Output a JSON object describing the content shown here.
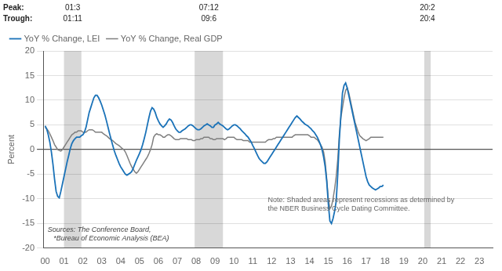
{
  "chart_data": {
    "type": "line",
    "ylabel": "Percent",
    "x": [
      2000,
      2000.0833,
      2000.1667,
      2000.25,
      2000.3333,
      2000.4167,
      2000.5,
      2000.5833,
      2000.6667,
      2000.75,
      2000.8333,
      2000.9167,
      2001,
      2001.0833,
      2001.1667,
      2001.25,
      2001.3333,
      2001.4167,
      2001.5,
      2001.5833,
      2001.6667,
      2001.75,
      2001.8333,
      2001.9167,
      2002,
      2002.0833,
      2002.1667,
      2002.25,
      2002.3333,
      2002.4167,
      2002.5,
      2002.5833,
      2002.6667,
      2002.75,
      2002.8333,
      2002.9167,
      2003,
      2003.0833,
      2003.1667,
      2003.25,
      2003.3333,
      2003.4167,
      2003.5,
      2003.5833,
      2003.6667,
      2003.75,
      2003.8333,
      2003.9167,
      2004,
      2004.0833,
      2004.1667,
      2004.25,
      2004.3333,
      2004.4167,
      2004.5,
      2004.5833,
      2004.6667,
      2004.75,
      2004.8333,
      2004.9167,
      2005,
      2005.0833,
      2005.1667,
      2005.25,
      2005.3333,
      2005.4167,
      2005.5,
      2005.5833,
      2005.6667,
      2005.75,
      2005.8333,
      2005.9167,
      2006,
      2006.0833,
      2006.1667,
      2006.25,
      2006.3333,
      2006.4167,
      2006.5,
      2006.5833,
      2006.6667,
      2006.75,
      2006.8333,
      2006.9167,
      2007,
      2007.0833,
      2007.1667,
      2007.25,
      2007.3333,
      2007.4167,
      2007.5,
      2007.5833,
      2007.6667,
      2007.75,
      2007.8333,
      2007.9167,
      2008,
      2008.0833,
      2008.1667,
      2008.25,
      2008.3333,
      2008.4167,
      2008.5,
      2008.5833,
      2008.6667,
      2008.75,
      2008.8333,
      2008.9167,
      2009,
      2009.0833,
      2009.1667,
      2009.25,
      2009.3333,
      2009.4167,
      2009.5,
      2009.5833,
      2009.6667,
      2009.75,
      2009.8333,
      2009.9167,
      2010,
      2010.0833,
      2010.1667,
      2010.25,
      2010.3333,
      2010.4167,
      2010.5,
      2010.5833,
      2010.6667,
      2010.75,
      2010.8333,
      2010.9167,
      2011,
      2011.0833,
      2011.1667,
      2011.25,
      2011.3333,
      2011.4167,
      2011.5,
      2011.5833,
      2011.6667,
      2011.75,
      2011.8333,
      2011.9167,
      2012,
      2012.0833,
      2012.1667,
      2012.25,
      2012.3333,
      2012.4167,
      2012.5,
      2012.5833,
      2012.6667,
      2012.75,
      2012.8333,
      2012.9167,
      2013,
      2013.0833,
      2013.1667,
      2013.25,
      2013.3333,
      2013.4167,
      2013.5,
      2013.5833,
      2013.6667,
      2013.75,
      2013.8333,
      2013.9167,
      2014,
      2014.0833,
      2014.1667,
      2014.25,
      2014.3333,
      2014.4167,
      2014.5,
      2014.5833,
      2014.6667,
      2014.75,
      2014.8333,
      2014.9167,
      2015,
      2015.0833,
      2015.1667,
      2015.25,
      2015.3333,
      2015.4167,
      2015.5,
      2015.5833,
      2015.6667,
      2015.75,
      2015.8333,
      2015.9167,
      2016,
      2016.0833,
      2016.1667,
      2016.25,
      2016.3333,
      2016.4167,
      2016.5,
      2016.5833,
      2016.6667,
      2016.75,
      2016.8333,
      2016.9167,
      2017,
      2017.0833,
      2017.1667,
      2017.25,
      2017.3333,
      2017.4167,
      2017.5,
      2017.5833,
      2017.6667,
      2017.75,
      2017.8333,
      2017.9167
    ],
    "xlim": [
      1999.9,
      2023.7
    ],
    "xticks": [
      {
        "value": 2000,
        "label": "00"
      },
      {
        "value": 2001,
        "label": "01"
      },
      {
        "value": 2002,
        "label": "02"
      },
      {
        "value": 2003,
        "label": "03"
      },
      {
        "value": 2004,
        "label": "04"
      },
      {
        "value": 2005,
        "label": "05"
      },
      {
        "value": 2006,
        "label": "06"
      },
      {
        "value": 2007,
        "label": "07"
      },
      {
        "value": 2008,
        "label": "08"
      },
      {
        "value": 2009,
        "label": "09"
      },
      {
        "value": 2010,
        "label": "10"
      },
      {
        "value": 2011,
        "label": "11"
      },
      {
        "value": 2012,
        "label": "12"
      },
      {
        "value": 2013,
        "label": "13"
      },
      {
        "value": 2014,
        "label": "14"
      },
      {
        "value": 2015,
        "label": "15"
      },
      {
        "value": 2016,
        "label": "16"
      },
      {
        "value": 2017,
        "label": "17"
      },
      {
        "value": 2018,
        "label": "18"
      },
      {
        "value": 2019,
        "label": "19"
      },
      {
        "value": 2020,
        "label": "20"
      },
      {
        "value": 2021,
        "label": "21"
      },
      {
        "value": 2022,
        "label": "22"
      },
      {
        "value": 2023,
        "label": "23"
      }
    ],
    "ylim": [
      -20,
      20
    ],
    "yticks": [
      -20,
      -15,
      -10,
      -5,
      0,
      5,
      10,
      15,
      20
    ],
    "grid": "y",
    "legend": "upper left",
    "series": [
      {
        "name": "YoY % Change, LEI",
        "color": "#1a72b8",
        "values": [
          4.8,
          4.2,
          3.0,
          1.5,
          -0.5,
          -3.0,
          -6.0,
          -8.5,
          -9.5,
          -9.8,
          -8.5,
          -7.0,
          -5.5,
          -4.0,
          -2.5,
          -1.2,
          0.2,
          1.2,
          1.8,
          2.2,
          2.5,
          2.5,
          2.5,
          2.8,
          3.0,
          3.5,
          4.5,
          6.0,
          7.5,
          8.5,
          9.5,
          10.5,
          11.0,
          11.0,
          10.5,
          9.8,
          9.0,
          8.0,
          7.0,
          5.8,
          4.5,
          3.2,
          2.0,
          0.8,
          -0.3,
          -1.2,
          -2.0,
          -2.8,
          -3.5,
          -4.0,
          -4.5,
          -5.0,
          -5.2,
          -5.0,
          -4.8,
          -4.5,
          -3.8,
          -3.0,
          -2.2,
          -1.5,
          -0.8,
          0.0,
          1.0,
          2.2,
          3.5,
          5.0,
          6.5,
          7.8,
          8.5,
          8.2,
          7.5,
          6.5,
          5.8,
          5.2,
          4.8,
          4.5,
          4.8,
          5.2,
          5.8,
          6.2,
          6.0,
          5.5,
          4.8,
          4.2,
          3.8,
          3.5,
          3.5,
          3.8,
          4.0,
          4.2,
          4.5,
          4.8,
          5.0,
          5.0,
          4.8,
          4.5,
          4.2,
          4.0,
          4.0,
          4.2,
          4.5,
          4.8,
          5.0,
          5.2,
          5.0,
          4.8,
          4.5,
          4.5,
          5.0,
          5.2,
          5.5,
          5.2,
          5.0,
          4.8,
          4.5,
          4.2,
          4.0,
          4.2,
          4.5,
          4.8,
          5.0,
          5.0,
          4.8,
          4.5,
          4.2,
          3.8,
          3.5,
          3.2,
          2.8,
          2.5,
          2.0,
          1.5,
          0.8,
          0.2,
          -0.5,
          -1.2,
          -1.8,
          -2.2,
          -2.5,
          -2.8,
          -2.8,
          -2.5,
          -2.0,
          -1.5,
          -1.0,
          -0.5,
          0.0,
          0.5,
          1.0,
          1.5,
          2.0,
          2.5,
          3.0,
          3.5,
          4.0,
          4.5,
          5.0,
          5.5,
          6.0,
          6.5,
          6.8,
          6.5,
          6.2,
          5.8,
          5.5,
          5.2,
          5.0,
          4.8,
          4.5,
          4.2,
          3.8,
          3.5,
          3.0,
          2.5,
          1.8,
          1.0,
          0.0,
          -1.5,
          -3.5,
          -6.5,
          -11.0,
          -14.5,
          -15.0,
          -14.0,
          -12.5,
          -10.5,
          -5.0,
          2.0,
          7.0,
          11.5,
          13.0,
          13.5,
          12.5,
          11.0,
          9.5,
          8.0,
          6.5,
          5.0,
          3.5,
          2.0,
          0.5,
          -1.0,
          -2.5,
          -4.0,
          -5.5,
          -6.5,
          -7.2,
          -7.5,
          -7.8,
          -8.0,
          -8.2,
          -8.0,
          -7.8,
          -7.5,
          -7.5,
          -7.2
        ]
      },
      {
        "name": "YoY % Change, Real GDP",
        "color": "#7f7f7f",
        "values": [
          4.5,
          4.2,
          3.8,
          3.2,
          2.5,
          1.8,
          1.0,
          0.5,
          0.0,
          -0.2,
          -0.3,
          0.0,
          0.5,
          1.0,
          1.5,
          2.0,
          2.5,
          3.0,
          3.2,
          3.5,
          3.5,
          3.8,
          3.8,
          3.8,
          3.5,
          3.5,
          3.5,
          3.8,
          4.0,
          4.0,
          4.0,
          3.8,
          3.5,
          3.5,
          3.5,
          3.5,
          3.5,
          3.2,
          3.0,
          2.8,
          2.5,
          2.2,
          2.0,
          1.8,
          1.5,
          1.2,
          1.0,
          0.8,
          0.5,
          0.2,
          0.0,
          -0.5,
          -1.2,
          -2.0,
          -2.8,
          -3.5,
          -4.0,
          -4.5,
          -4.8,
          -4.5,
          -4.0,
          -3.5,
          -3.0,
          -2.5,
          -2.0,
          -1.5,
          -0.8,
          0.0,
          1.0,
          2.5,
          3.0,
          3.2,
          3.0,
          3.0,
          2.8,
          2.5,
          2.5,
          2.8,
          3.0,
          3.0,
          2.8,
          2.5,
          2.2,
          2.0,
          2.0,
          2.0,
          2.2,
          2.2,
          2.2,
          2.2,
          2.2,
          2.0,
          2.0,
          2.0,
          1.8,
          1.8,
          2.0,
          2.0,
          2.0,
          2.2,
          2.2,
          2.5,
          2.5,
          2.5,
          2.5,
          2.2,
          2.2,
          2.0,
          2.0,
          2.2,
          2.2,
          2.2,
          2.2,
          2.2,
          2.0,
          2.2,
          2.5,
          2.5,
          2.5,
          2.5,
          2.5,
          2.2,
          2.0,
          2.0,
          2.0,
          2.0,
          1.8,
          1.8,
          1.8,
          1.8,
          1.5,
          1.5,
          1.5,
          1.5,
          1.5,
          1.5,
          1.5,
          1.5,
          1.5,
          1.5,
          1.5,
          1.8,
          2.0,
          2.0,
          2.0,
          2.2,
          2.2,
          2.5,
          2.5,
          2.5,
          2.5,
          2.5,
          2.5,
          2.5,
          2.5,
          2.5,
          2.5,
          2.5,
          2.8,
          3.0,
          3.0,
          3.0,
          3.0,
          3.0,
          3.0,
          3.0,
          3.0,
          3.0,
          2.8,
          2.5,
          2.5,
          2.5,
          2.2,
          2.0,
          1.5,
          1.0,
          0.5,
          -0.5,
          -2.5,
          -6.0,
          -10.0,
          -12.0,
          -11.5,
          -10.0,
          -8.0,
          -5.5,
          -2.0,
          3.0,
          6.5,
          8.5,
          10.5,
          12.0,
          12.5,
          11.5,
          10.0,
          8.5,
          7.0,
          5.5,
          4.5,
          3.5,
          2.8,
          2.5,
          2.2,
          2.0,
          1.8,
          2.0,
          2.2,
          2.5,
          2.5,
          2.5,
          2.5,
          2.5,
          2.5,
          2.5,
          2.5,
          2.5
        ]
      }
    ],
    "recessions": [
      {
        "start": 2001.0,
        "end": 2001.92,
        "peak": "01:3",
        "trough": "01:11"
      },
      {
        "start": 2007.92,
        "end": 2009.42,
        "peak": "07:12",
        "trough": "09:6"
      },
      {
        "start": 2020.08,
        "end": 2020.42,
        "peak": "20:2",
        "trough": "20:4"
      }
    ],
    "peak_label": "Peak:",
    "trough_label": "Trough:",
    "source_text": "Sources: The Conference Board,\n   *Bureau of Economic Analysis (BEA)",
    "note_text": "Note: Shaded areas represent recessions as determined by\nthe NBER Business Cycle Dating Committee."
  }
}
